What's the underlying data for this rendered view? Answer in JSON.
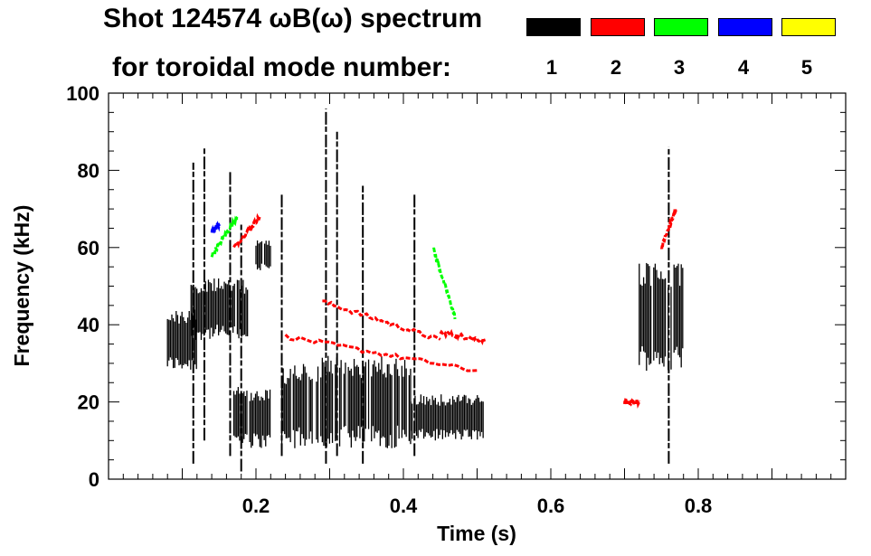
{
  "chart_data": {
    "type": "spectrogram",
    "title_line1": "Shot 124574 ωB(ω) spectrum",
    "title_line2": "for toroidal mode number:",
    "xlabel": "Time (s)",
    "ylabel": "Frequency (kHz)",
    "xlim": [
      0.0,
      1.0
    ],
    "ylim": [
      0,
      100
    ],
    "x_ticks": [
      0.2,
      0.4,
      0.6,
      0.8
    ],
    "x_tick_labels": [
      "0.2",
      "0.4",
      "0.6",
      "0.8"
    ],
    "y_ticks": [
      0,
      20,
      40,
      60,
      80,
      100
    ],
    "y_tick_labels": [
      "0",
      "20",
      "40",
      "60",
      "80",
      "100"
    ],
    "legend": [
      {
        "label": "1",
        "color": "#000000"
      },
      {
        "label": "2",
        "color": "#ff0000"
      },
      {
        "label": "3",
        "color": "#00ff00"
      },
      {
        "label": "4",
        "color": "#0000ff"
      },
      {
        "label": "5",
        "color": "#ffff00"
      }
    ],
    "series": [
      {
        "mode": "1",
        "color": "#000000",
        "regions": [
          {
            "t": [
              0.08,
              0.12
            ],
            "f": [
              28,
              44
            ]
          },
          {
            "t": [
              0.11,
              0.19
            ],
            "f": [
              36,
              52
            ]
          },
          {
            "t": [
              0.17,
              0.22
            ],
            "f": [
              8,
              24
            ]
          },
          {
            "t": [
              0.2,
              0.22
            ],
            "f": [
              54,
              62
            ]
          },
          {
            "t": [
              0.235,
              0.29
            ],
            "f": [
              8,
              30
            ]
          },
          {
            "t": [
              0.29,
              0.41
            ],
            "f": [
              8,
              32
            ]
          },
          {
            "t": [
              0.41,
              0.51
            ],
            "f": [
              10,
              22
            ]
          },
          {
            "t": [
              0.72,
              0.78
            ],
            "f": [
              28,
              56
            ]
          }
        ],
        "spikes": [
          {
            "t": 0.115,
            "f": [
              4,
              82
            ]
          },
          {
            "t": 0.13,
            "f": [
              10,
              86
            ]
          },
          {
            "t": 0.165,
            "f": [
              6,
              80
            ]
          },
          {
            "t": 0.18,
            "f": [
              2,
              66
            ]
          },
          {
            "t": 0.235,
            "f": [
              6,
              74
            ]
          },
          {
            "t": 0.295,
            "f": [
              4,
              96
            ]
          },
          {
            "t": 0.31,
            "f": [
              6,
              90
            ]
          },
          {
            "t": 0.345,
            "f": [
              4,
              76
            ]
          },
          {
            "t": 0.415,
            "f": [
              6,
              74
            ]
          },
          {
            "t": 0.76,
            "f": [
              4,
              86
            ]
          }
        ]
      },
      {
        "mode": "2",
        "color": "#ff0000",
        "tracks": [
          {
            "t": [
              0.17,
              0.205
            ],
            "f": [
              60,
              68
            ]
          },
          {
            "t": [
              0.29,
              0.45
            ],
            "f": [
              46,
              36
            ]
          },
          {
            "t": [
              0.45,
              0.51
            ],
            "f": [
              38,
              36
            ]
          },
          {
            "t": [
              0.24,
              0.5
            ],
            "f": [
              37,
              28
            ]
          },
          {
            "t": [
              0.7,
              0.72
            ],
            "f": [
              20,
              20
            ]
          },
          {
            "t": [
              0.75,
              0.77
            ],
            "f": [
              60,
              70
            ]
          }
        ]
      },
      {
        "mode": "3",
        "color": "#00ff00",
        "tracks": [
          {
            "t": [
              0.14,
              0.175
            ],
            "f": [
              58,
              68
            ]
          },
          {
            "t": [
              0.44,
              0.47
            ],
            "f": [
              60,
              42
            ]
          }
        ]
      },
      {
        "mode": "4",
        "color": "#0000ff",
        "tracks": [
          {
            "t": [
              0.14,
              0.15
            ],
            "f": [
              64,
              66
            ]
          }
        ]
      },
      {
        "mode": "5",
        "color": "#ffff00",
        "tracks": []
      }
    ]
  }
}
